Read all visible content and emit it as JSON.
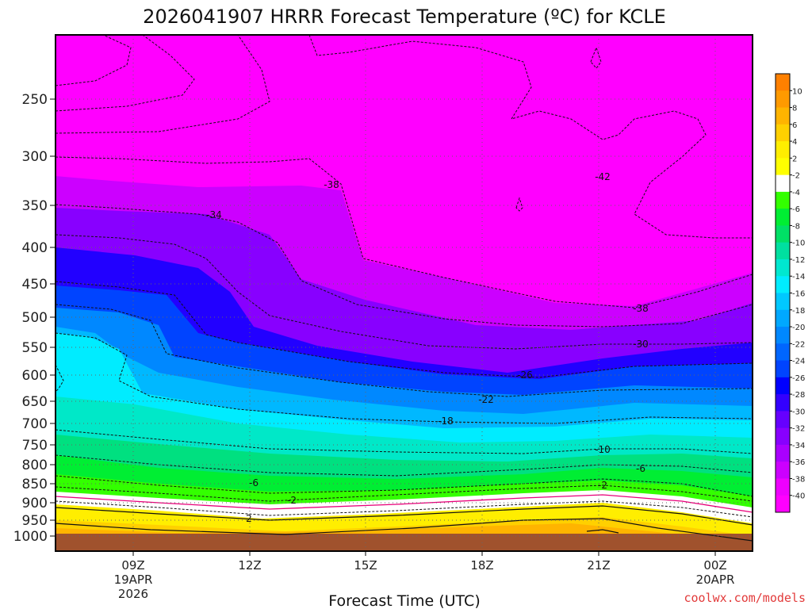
{
  "chart_data": {
    "type": "heatmap",
    "title": "2026041907 HRRR Forecast Temperature (ºC) for KCLE",
    "xlabel": "Forecast Time (UTC)",
    "ylabel": "",
    "y_ticks": [
      "250",
      "300",
      "350",
      "400",
      "450",
      "500",
      "550",
      "600",
      "650",
      "700",
      "750",
      "800",
      "850",
      "900",
      "950",
      "1000"
    ],
    "x_ticks": [
      {
        "line1": "09Z",
        "line2": "19APR",
        "line3": "2026"
      },
      {
        "line1": "12Z",
        "line2": "",
        "line3": ""
      },
      {
        "line1": "15Z",
        "line2": "",
        "line3": ""
      },
      {
        "line1": "18Z",
        "line2": "",
        "line3": ""
      },
      {
        "line1": "21Z",
        "line2": "",
        "line3": ""
      },
      {
        "line1": "00Z",
        "line2": "20APR",
        "line3": ""
      }
    ],
    "colorbar": {
      "labels": [
        "10",
        "8",
        "6",
        "4",
        "2",
        "-2",
        "-4",
        "-6",
        "-8",
        "-10",
        "-12",
        "-14",
        "-16",
        "-18",
        "-20",
        "-22",
        "-24",
        "-26",
        "-28",
        "-30",
        "-32",
        "-34",
        "-36",
        "-38",
        "-40"
      ],
      "colors": [
        "#ff8000",
        "#ff9a00",
        "#ffb400",
        "#ffd000",
        "#ffee00",
        "#ffff00",
        "#ffffff",
        "#33ff00",
        "#00ee33",
        "#00e066",
        "#00e0a0",
        "#00e8d0",
        "#00ecff",
        "#00c8ff",
        "#00a8ff",
        "#0088ff",
        "#0066ff",
        "#0044ff",
        "#0000ff",
        "#3300ff",
        "#6600ff",
        "#8800ff",
        "#aa00ff",
        "#cc00ff",
        "#ee00ff",
        "#ff00ff"
      ]
    },
    "contour_labels": [
      "-42",
      "-38",
      "-34",
      "-38",
      "-30",
      "-26",
      "-22",
      "-18",
      "-10",
      "-6",
      "-6",
      "-2",
      "-2",
      "2"
    ],
    "grid": true,
    "legend": "right"
  },
  "watermark": "coolwx.com/models"
}
